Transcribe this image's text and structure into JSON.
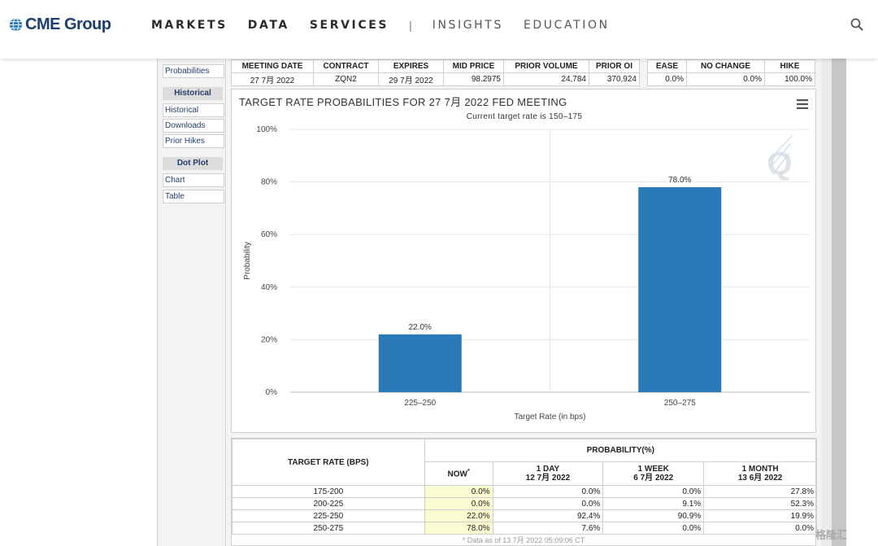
{
  "header": {
    "logo_text": "CME Group",
    "nav": [
      {
        "label": "MARKETS",
        "style": "bold"
      },
      {
        "label": "DATA",
        "style": "bold"
      },
      {
        "label": "SERVICES",
        "style": "bold"
      },
      {
        "label": "INSIGHTS",
        "style": "light"
      },
      {
        "label": "EDUCATION",
        "style": "light"
      }
    ],
    "separator": "|"
  },
  "sidebar": {
    "probabilities": "Probabilities",
    "historical_head": "Historical",
    "historical": "Historical",
    "downloads": "Downloads",
    "prior_hikes": "Prior Hikes",
    "dot_plot_head": "Dot Plot",
    "chart": "Chart",
    "table": "Table"
  },
  "info": {
    "headers": [
      "MEETING DATE",
      "CONTRACT",
      "EXPIRES",
      "MID PRICE",
      "PRIOR VOLUME",
      "PRIOR OI"
    ],
    "values": [
      "27 7月 2022",
      "ZQN2",
      "29 7月 2022",
      "98.2975",
      "24,784",
      "370,924"
    ],
    "headers2": [
      "EASE",
      "NO CHANGE",
      "HIKE"
    ],
    "values2": [
      "0.0%",
      "0.0%",
      "100.0%"
    ]
  },
  "chart_data": {
    "type": "bar",
    "title": "TARGET RATE PROBABILITIES FOR 27 7月 2022 FED MEETING",
    "subtitle": "Current target rate is 150–175",
    "categories": [
      "225–250",
      "250–275"
    ],
    "values": [
      22.0,
      78.0
    ],
    "data_labels": [
      "22.0%",
      "78.0%"
    ],
    "xlabel": "Target Rate (in bps)",
    "ylabel": "Probability",
    "ylim": [
      0,
      100
    ],
    "yticks": [
      0,
      20,
      40,
      60,
      80,
      100
    ],
    "ytick_labels": [
      "0%",
      "20%",
      "40%",
      "60%",
      "80%",
      "100%"
    ],
    "bar_color": "#2a7ab8",
    "grid": true
  },
  "prob_table": {
    "rate_header": "TARGET RATE (BPS)",
    "prob_header": "PROBABILITY(%)",
    "columns": [
      {
        "line1": "NOW",
        "line2": "",
        "mark": "*"
      },
      {
        "line1": "1 DAY",
        "line2": "12 7月 2022",
        "mark": ""
      },
      {
        "line1": "1 WEEK",
        "line2": "6 7月 2022",
        "mark": ""
      },
      {
        "line1": "1 MONTH",
        "line2": "13 6月 2022",
        "mark": ""
      }
    ],
    "rows": [
      {
        "rate": "175-200",
        "values": [
          "0.0%",
          "0.0%",
          "0.0%",
          "27.8%"
        ]
      },
      {
        "rate": "200-225",
        "values": [
          "0.0%",
          "0.0%",
          "9.1%",
          "52.3%"
        ]
      },
      {
        "rate": "225-250",
        "values": [
          "22.0%",
          "92.4%",
          "90.9%",
          "19.9%"
        ]
      },
      {
        "rate": "250-275",
        "values": [
          "78.0%",
          "7.6%",
          "0.0%",
          "0.0%"
        ]
      }
    ],
    "footnote": "* Data as of 13 7月 2022 05:09:06 CT"
  },
  "watermark": "格隆汇"
}
